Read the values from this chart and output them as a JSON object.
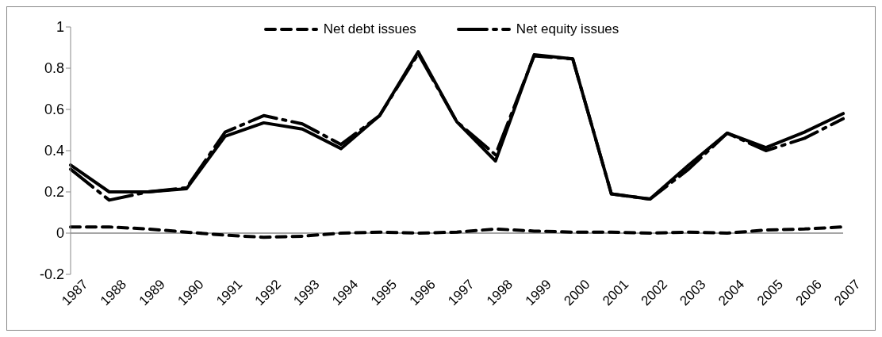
{
  "chart_data": {
    "type": "line",
    "categories": [
      "1987",
      "1988",
      "1989",
      "1990",
      "1991",
      "1992",
      "1993",
      "1994",
      "1995",
      "1996",
      "1997",
      "1998",
      "1999",
      "2000",
      "2001",
      "2002",
      "2003",
      "2004",
      "2005",
      "2006",
      "2007"
    ],
    "series": [
      {
        "name": "Net debt issues",
        "color": "#000000",
        "line_style": "dashed",
        "values": [
          0.03,
          0.03,
          0.02,
          0.005,
          -0.01,
          -0.02,
          -0.015,
          0,
          0.005,
          0,
          0.005,
          0.02,
          0.01,
          0.005,
          0.005,
          0,
          0.005,
          0,
          0.015,
          0.02,
          0.03
        ]
      },
      {
        "name": "Net equity issues",
        "color": "#000000",
        "line_style": "longdash",
        "values": [
          0.31,
          0.16,
          0.2,
          0.22,
          0.49,
          0.57,
          0.53,
          0.43,
          0.57,
          0.87,
          0.54,
          0.38,
          0.86,
          0.845,
          0.19,
          0.165,
          0.31,
          0.485,
          0.4,
          0.46,
          0.555
        ]
      },
      {
        "color": "#000000",
        "line_style": "solid",
        "values": [
          0.33,
          0.2,
          0.2,
          0.215,
          0.47,
          0.535,
          0.505,
          0.41,
          0.57,
          0.88,
          0.54,
          0.35,
          0.865,
          0.845,
          0.19,
          0.165,
          0.33,
          0.485,
          0.415,
          0.49,
          0.58
        ]
      }
    ],
    "ylim": [
      -0.2,
      1
    ],
    "yticks": [
      -0.2,
      0,
      0.2,
      0.4,
      0.6,
      0.8,
      1
    ],
    "ref_lines": [
      {
        "axis": "y",
        "value": 0,
        "color": "#888888",
        "line_style": "solid"
      }
    ],
    "grid": false,
    "legend": "top",
    "marker": "none"
  }
}
